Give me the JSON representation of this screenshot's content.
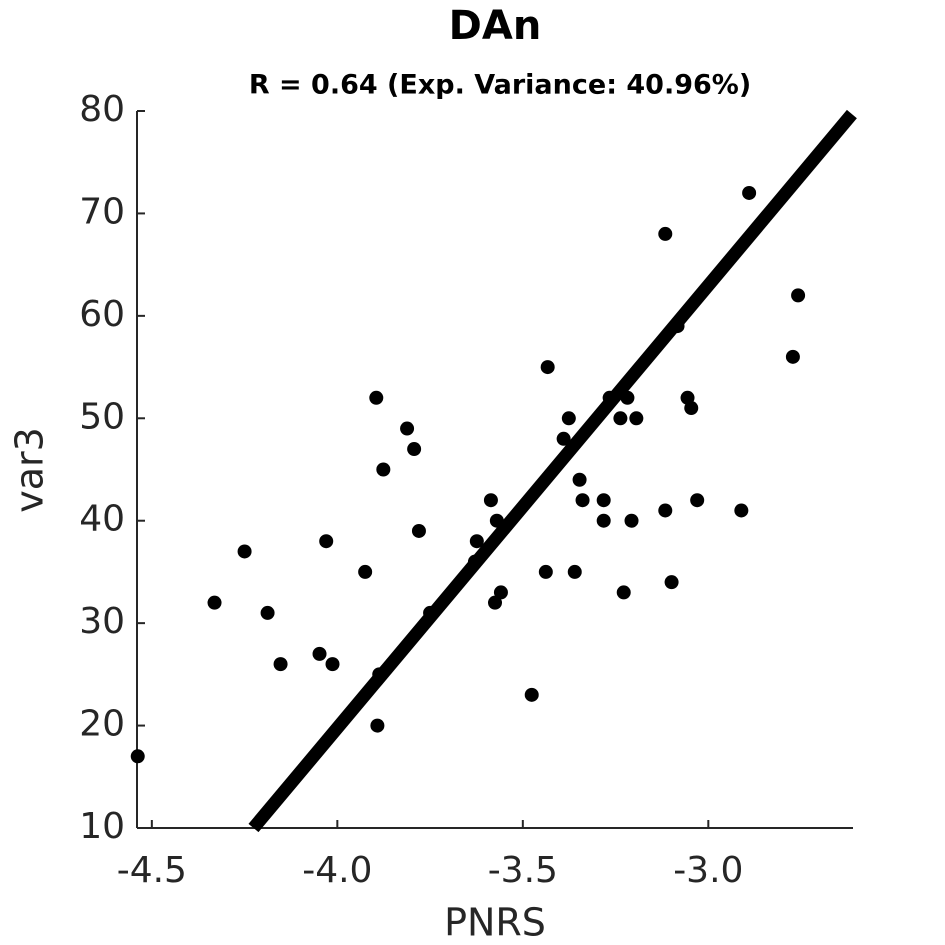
{
  "chart_data": {
    "type": "scatter",
    "title": "DAn",
    "subtitle": "R = 0.64 (Exp. Variance: 40.96%)",
    "x_label": "PNRS",
    "y_label": "var3",
    "xlim": [
      -4.54,
      -2.61
    ],
    "ylim": [
      10,
      80
    ],
    "xticks": [
      {
        "value": -4.5,
        "label": "-4.5"
      },
      {
        "value": -4.0,
        "label": "-4.0"
      },
      {
        "value": -3.5,
        "label": "-3.5"
      },
      {
        "value": -3.0,
        "label": "-3.0"
      }
    ],
    "yticks": [
      10,
      20,
      30,
      40,
      50,
      60,
      70,
      80
    ],
    "color": "#000000",
    "x": [
      -4.538,
      -4.331,
      -4.25,
      -4.188,
      -4.153,
      -4.048,
      -4.03,
      -4.013,
      -3.925,
      -3.895,
      -3.892,
      -3.887,
      -3.876,
      -3.812,
      -3.793,
      -3.78,
      -3.75,
      -3.629,
      -3.624,
      -3.586,
      -3.575,
      -3.57,
      -3.559,
      -3.476,
      -3.438,
      -3.433,
      -3.39,
      -3.376,
      -3.36,
      -3.347,
      -3.339,
      -3.282,
      -3.282,
      -3.266,
      -3.237,
      -3.228,
      -3.218,
      -3.207,
      -3.194,
      -3.116,
      -3.116,
      -3.099,
      -3.083,
      -3.056,
      -3.046,
      -3.03,
      -2.911,
      -2.89,
      -2.772,
      -2.758
    ],
    "values": [
      17,
      32,
      37,
      31,
      26,
      27,
      38,
      26,
      35,
      52,
      20,
      25,
      45,
      49,
      47,
      39,
      31,
      36,
      38,
      42,
      32,
      40,
      33,
      23,
      35,
      55,
      48,
      50,
      35,
      44,
      42,
      42,
      40,
      52,
      50,
      33,
      52,
      40,
      50,
      68,
      41,
      34,
      59,
      52,
      51,
      42,
      41,
      72,
      56,
      62
    ],
    "fit_line": {
      "x": [
        -4.226,
        -2.613
      ],
      "y": [
        10,
        79.7
      ]
    }
  }
}
